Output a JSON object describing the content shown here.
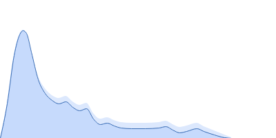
{
  "chart_data": {
    "type": "area",
    "x": [
      0,
      10,
      20,
      28,
      33,
      38,
      45,
      55,
      65,
      75,
      85,
      95,
      105,
      115,
      125,
      135,
      145,
      155,
      165,
      175,
      190,
      210,
      230,
      240,
      250,
      260,
      270,
      285,
      295,
      310,
      325,
      335
    ],
    "values": [
      0,
      50,
      120,
      150,
      156,
      152,
      125,
      85,
      65,
      55,
      50,
      53,
      45,
      40,
      43,
      28,
      20,
      22,
      18,
      15,
      14,
      14,
      15,
      17,
      12,
      8,
      10,
      14,
      10,
      5,
      1,
      0
    ],
    "upper": [
      0,
      51,
      121,
      151,
      157,
      153,
      127,
      90,
      72,
      62,
      58,
      61,
      53,
      48,
      51,
      36,
      28,
      30,
      26,
      23,
      22,
      22,
      23,
      25,
      20,
      16,
      18,
      22,
      17,
      11,
      5,
      1
    ],
    "lower": [
      0,
      49,
      119,
      149,
      155,
      151,
      123,
      80,
      60,
      49,
      44,
      45,
      38,
      32,
      34,
      20,
      12,
      14,
      10,
      7,
      6,
      6,
      7,
      9,
      4,
      1,
      3,
      6,
      3,
      0,
      0,
      0
    ],
    "color": "#3a6db5",
    "xlim": [
      0,
      400
    ],
    "ylim": [
      0,
      200
    ],
    "tick_labels": false,
    "grid": false
  }
}
